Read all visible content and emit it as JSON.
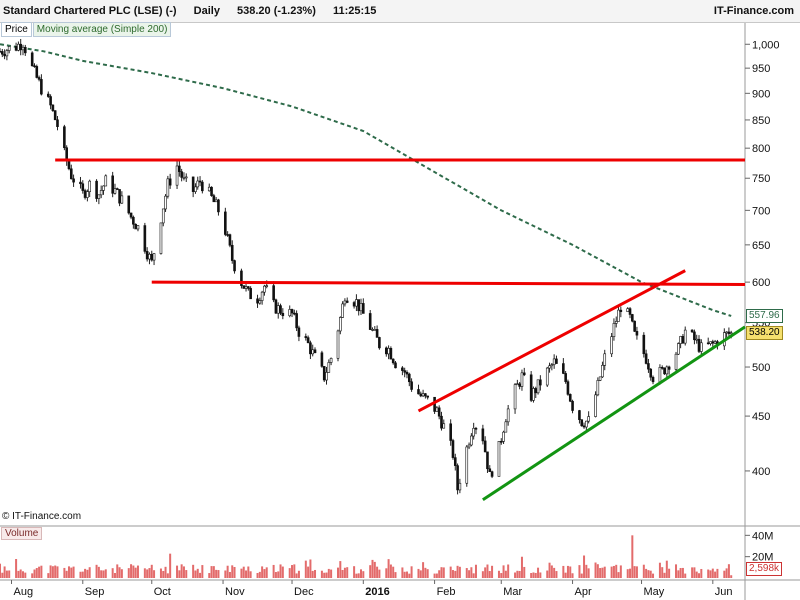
{
  "header": {
    "instrument": "Standard Chartered PLC (LSE) (-)",
    "interval": "Daily",
    "quote": "538.20 (-1.23%)",
    "time": "11:25:15",
    "brand": "IT-Finance.com"
  },
  "legend": {
    "price": "Price",
    "ma": "Moving average (Simple 200)",
    "volume": "Volume"
  },
  "copyright": "© IT-Finance.com",
  "colors": {
    "up": "#1a8a1a",
    "down": "#cc0000",
    "ma": "#2e6b4a",
    "resistance": "#ee0000",
    "support": "#129412",
    "volume": "#e36b6b"
  },
  "chart_data": {
    "type": "candlestick",
    "scale": "log",
    "ylim": [
      360,
      1040
    ],
    "y_ticks": [
      "1,000",
      "950",
      "900",
      "850",
      "800",
      "750",
      "700",
      "650",
      "600",
      "550",
      "500",
      "450",
      "400"
    ],
    "y_tick_values": [
      1000,
      950,
      900,
      850,
      800,
      750,
      700,
      650,
      600,
      550,
      500,
      450,
      400
    ],
    "x_ticks": [
      "Aug",
      "Sep",
      "Oct",
      "Nov",
      "Dec",
      "2016",
      "Feb",
      "Mar",
      "Apr",
      "May",
      "Jun"
    ],
    "x_range": [
      "2015-07-27",
      "2016-06-15"
    ],
    "tick_dates": [
      "2015-08-01",
      "2015-09-01",
      "2015-10-01",
      "2015-11-01",
      "2015-12-01",
      "2016-01-01",
      "2016-02-01",
      "2016-03-01",
      "2016-04-01",
      "2016-05-01",
      "2016-06-01"
    ],
    "close_path": [
      [
        "2015-07-27",
        985
      ],
      [
        "2015-08-03",
        995
      ],
      [
        "2015-08-06",
        1005
      ],
      [
        "2015-08-10",
        950
      ],
      [
        "2015-08-14",
        910
      ],
      [
        "2015-08-18",
        875
      ],
      [
        "2015-08-21",
        840
      ],
      [
        "2015-08-24",
        790
      ],
      [
        "2015-08-27",
        755
      ],
      [
        "2015-09-01",
        725
      ],
      [
        "2015-09-04",
        740
      ],
      [
        "2015-09-08",
        725
      ],
      [
        "2015-09-11",
        745
      ],
      [
        "2015-09-15",
        730
      ],
      [
        "2015-09-18",
        715
      ],
      [
        "2015-09-22",
        690
      ],
      [
        "2015-09-25",
        675
      ],
      [
        "2015-09-29",
        640
      ],
      [
        "2015-10-01",
        625
      ],
      [
        "2015-10-05",
        690
      ],
      [
        "2015-10-08",
        740
      ],
      [
        "2015-10-12",
        770
      ],
      [
        "2015-10-15",
        745
      ],
      [
        "2015-10-19",
        730
      ],
      [
        "2015-10-22",
        745
      ],
      [
        "2015-10-26",
        725
      ],
      [
        "2015-10-30",
        700
      ],
      [
        "2015-11-02",
        670
      ],
      [
        "2015-11-05",
        630
      ],
      [
        "2015-11-09",
        600
      ],
      [
        "2015-11-12",
        585
      ],
      [
        "2015-11-16",
        580
      ],
      [
        "2015-11-19",
        595
      ],
      [
        "2015-11-23",
        570
      ],
      [
        "2015-11-26",
        565
      ],
      [
        "2015-12-01",
        560
      ],
      [
        "2015-12-04",
        540
      ],
      [
        "2015-12-08",
        525
      ],
      [
        "2015-12-11",
        510
      ],
      [
        "2015-12-15",
        490
      ],
      [
        "2015-12-18",
        510
      ],
      [
        "2015-12-22",
        555
      ],
      [
        "2015-12-24",
        585
      ],
      [
        "2015-12-29",
        575
      ],
      [
        "2016-01-04",
        545
      ],
      [
        "2016-01-08",
        525
      ],
      [
        "2016-01-12",
        520
      ],
      [
        "2016-01-15",
        505
      ],
      [
        "2016-01-19",
        495
      ],
      [
        "2016-01-22",
        480
      ],
      [
        "2016-01-26",
        470
      ],
      [
        "2016-01-29",
        465
      ],
      [
        "2016-02-02",
        455
      ],
      [
        "2016-02-05",
        440
      ],
      [
        "2016-02-09",
        415
      ],
      [
        "2016-02-11",
        385
      ],
      [
        "2016-02-15",
        420
      ],
      [
        "2016-02-18",
        445
      ],
      [
        "2016-02-22",
        430
      ],
      [
        "2016-02-25",
        395
      ],
      [
        "2016-02-29",
        420
      ],
      [
        "2016-03-03",
        450
      ],
      [
        "2016-03-07",
        475
      ],
      [
        "2016-03-10",
        490
      ],
      [
        "2016-03-14",
        470
      ],
      [
        "2016-03-17",
        480
      ],
      [
        "2016-03-21",
        495
      ],
      [
        "2016-03-24",
        505
      ],
      [
        "2016-03-29",
        485
      ],
      [
        "2016-04-01",
        460
      ],
      [
        "2016-04-05",
        445
      ],
      [
        "2016-04-08",
        445
      ],
      [
        "2016-04-12",
        480
      ],
      [
        "2016-04-15",
        510
      ],
      [
        "2016-04-19",
        545
      ],
      [
        "2016-04-22",
        570
      ],
      [
        "2016-04-26",
        555
      ],
      [
        "2016-04-28",
        535
      ],
      [
        "2016-05-03",
        510
      ],
      [
        "2016-05-06",
        490
      ],
      [
        "2016-05-10",
        495
      ],
      [
        "2016-05-13",
        505
      ],
      [
        "2016-05-17",
        520
      ],
      [
        "2016-05-20",
        540
      ],
      [
        "2016-05-24",
        530
      ],
      [
        "2016-05-27",
        520
      ],
      [
        "2016-06-01",
        525
      ],
      [
        "2016-06-06",
        535
      ],
      [
        "2016-06-09",
        538.2
      ]
    ],
    "moving_average": [
      [
        "2015-07-27",
        1000
      ],
      [
        "2015-08-15",
        985
      ],
      [
        "2015-09-01",
        965
      ],
      [
        "2015-10-01",
        940
      ],
      [
        "2015-11-01",
        910
      ],
      [
        "2015-12-01",
        875
      ],
      [
        "2016-01-01",
        830
      ],
      [
        "2016-02-01",
        760
      ],
      [
        "2016-03-01",
        700
      ],
      [
        "2016-04-01",
        650
      ],
      [
        "2016-05-01",
        600
      ],
      [
        "2016-06-01",
        565
      ],
      [
        "2016-06-09",
        557.96
      ]
    ],
    "lines": [
      {
        "name": "resistance-upper",
        "kind": "resistance",
        "points": [
          [
            "2015-08-20",
            780
          ],
          [
            "2016-06-15",
            780
          ]
        ]
      },
      {
        "name": "resistance-lower",
        "kind": "resistance",
        "points": [
          [
            "2015-10-01",
            600
          ],
          [
            "2016-06-15",
            597
          ]
        ]
      },
      {
        "name": "channel-upper",
        "kind": "resistance",
        "points": [
          [
            "2016-01-25",
            455
          ],
          [
            "2016-05-20",
            615
          ]
        ]
      },
      {
        "name": "channel-lower",
        "kind": "support",
        "points": [
          [
            "2016-02-22",
            376
          ],
          [
            "2016-06-15",
            545
          ]
        ]
      }
    ],
    "volume": {
      "ticks": [
        "40M",
        "20M"
      ],
      "tick_values": [
        40000000,
        20000000
      ],
      "ylim": [
        0,
        45000000
      ],
      "max_date": "2016-04-27",
      "max_value": 40000000,
      "last_label": "2,598k",
      "last_value": 2598000
    },
    "tags": {
      "ma_label": "557.96",
      "ma_value": 557.96,
      "price_label": "538.20",
      "price_value": 538.2
    }
  }
}
